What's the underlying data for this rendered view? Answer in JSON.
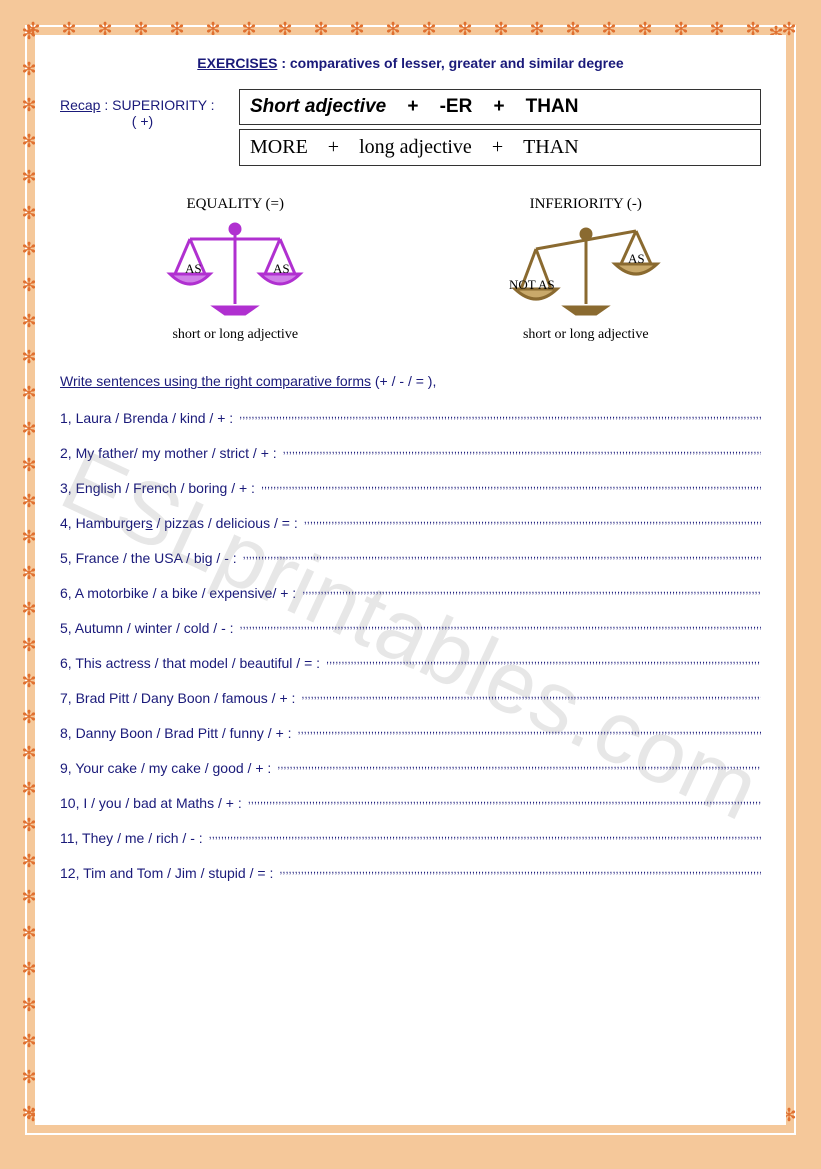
{
  "title": {
    "label": "EXERCISES",
    "subtitle": ": comparatives of lesser, greater and similar degree"
  },
  "recap": {
    "label": "Recap",
    "sup_label": ": SUPERIORITY :",
    "plus_label": "( +)"
  },
  "rule_box_1": {
    "part1": "Short adjective",
    "plus1": "+",
    "part2": "-ER",
    "plus2": "+",
    "part3": "THAN"
  },
  "rule_box_2": {
    "part1": "MORE",
    "plus1": "+",
    "part2": "long adjective",
    "plus2": "+",
    "part3": "THAN"
  },
  "equality": {
    "heading": "EQUALITY (=)",
    "left": "AS",
    "right": "AS",
    "caption": "short or long adjective",
    "color": "#b030d0"
  },
  "inferiority": {
    "heading": "INFERIORITY (-)",
    "left": "NOT AS",
    "right": "AS",
    "caption": "short or long adjective",
    "color": "#8a6a30"
  },
  "instruction": {
    "underlined": "Write sentences using the right comparative forms",
    "rest": " (+ / - / = ),"
  },
  "exercises": [
    {
      "n": "1",
      "text": "Laura / Brenda / kind / + :"
    },
    {
      "n": "2",
      "text": "My father/ my mother / strict / + :"
    },
    {
      "n": "3",
      "text": "English / French / boring / + :"
    },
    {
      "n": "4",
      "text": "Hamburger",
      "text_u": "s",
      "text2": " / pizzas / delicious / = :"
    },
    {
      "n": "5",
      "text": "France / the USA / big / - :"
    },
    {
      "n": "6",
      "text": "A motorbike / a bike / expensive/ + :"
    },
    {
      "n": "5",
      "text": "Autumn / winter / cold / - :"
    },
    {
      "n": "6",
      "text": "This actress / that model / beautiful / = :"
    },
    {
      "n": "7",
      "text": "Brad Pitt / Dany Boon / famous / + :"
    },
    {
      "n": "8",
      "text": "Danny Boon / Brad Pitt / funny / + :"
    },
    {
      "n": "9",
      "text": "Your cake / my cake / good / + :"
    },
    {
      "n": "10",
      "text": "I / you / bad at Maths / + :"
    },
    {
      "n": "11",
      "text": "They / me / rich / - :"
    },
    {
      "n": "12",
      "text": "Tim and Tom / Jim / stupid / = :"
    }
  ],
  "watermark": "ESLprintables.com",
  "flower_glyph": "✻"
}
